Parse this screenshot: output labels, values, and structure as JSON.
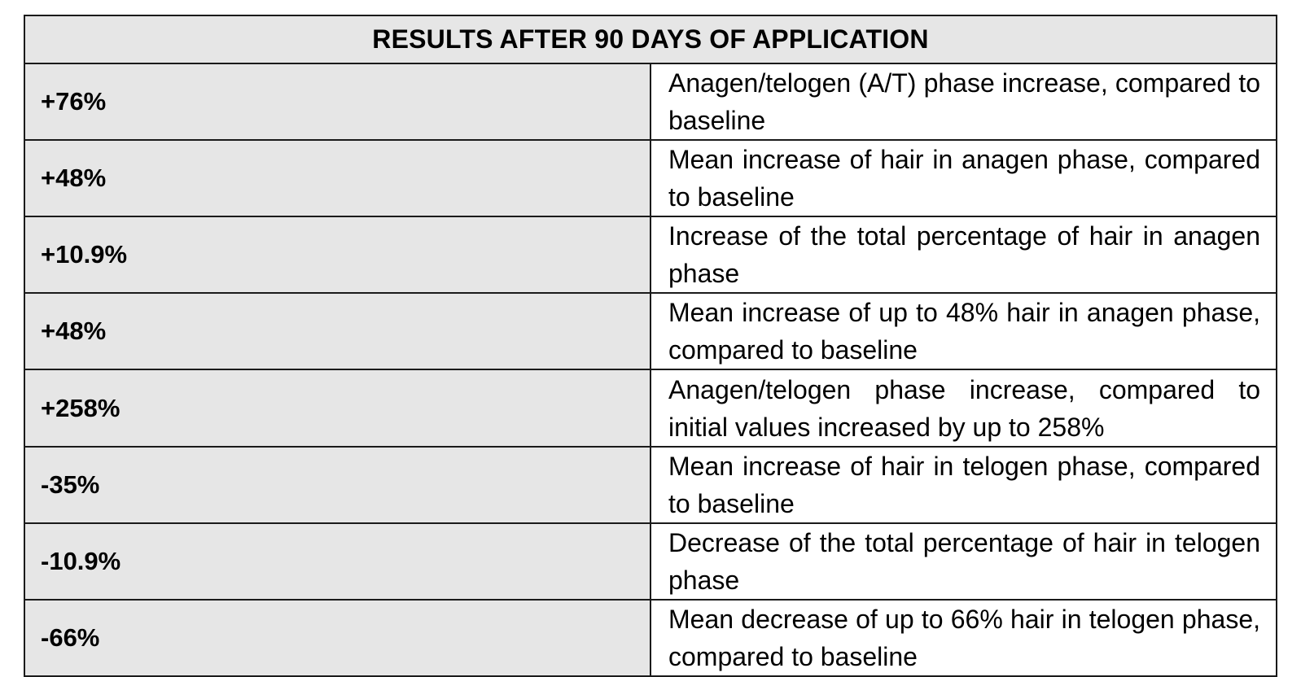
{
  "table": {
    "title": "RESULTS AFTER 90 DAYS OF APPLICATION",
    "rows": [
      {
        "value": "+76%",
        "description": "Anagen/telogen (A/T) phase increase, compared to baseline"
      },
      {
        "value": "+48%",
        "description": "Mean increase of hair in anagen phase, compared to baseline"
      },
      {
        "value": "+10.9%",
        "description": "Increase of the total percentage of hair in anagen phase"
      },
      {
        "value": "+48%",
        "description": "Mean increase of up to 48% hair in anagen phase, compared to baseline"
      },
      {
        "value": "+258%",
        "description": "Anagen/telogen phase increase, compared to initial values increased by up to 258%"
      },
      {
        "value": "-35%",
        "description": "Mean increase of hair in telogen phase, compared to baseline"
      },
      {
        "value": "-10.9%",
        "description": "Decrease of the total percentage of hair in telogen phase"
      },
      {
        "value": "-66%",
        "description": "Mean decrease of up to 66% hair in telogen phase, compared to baseline"
      }
    ]
  }
}
